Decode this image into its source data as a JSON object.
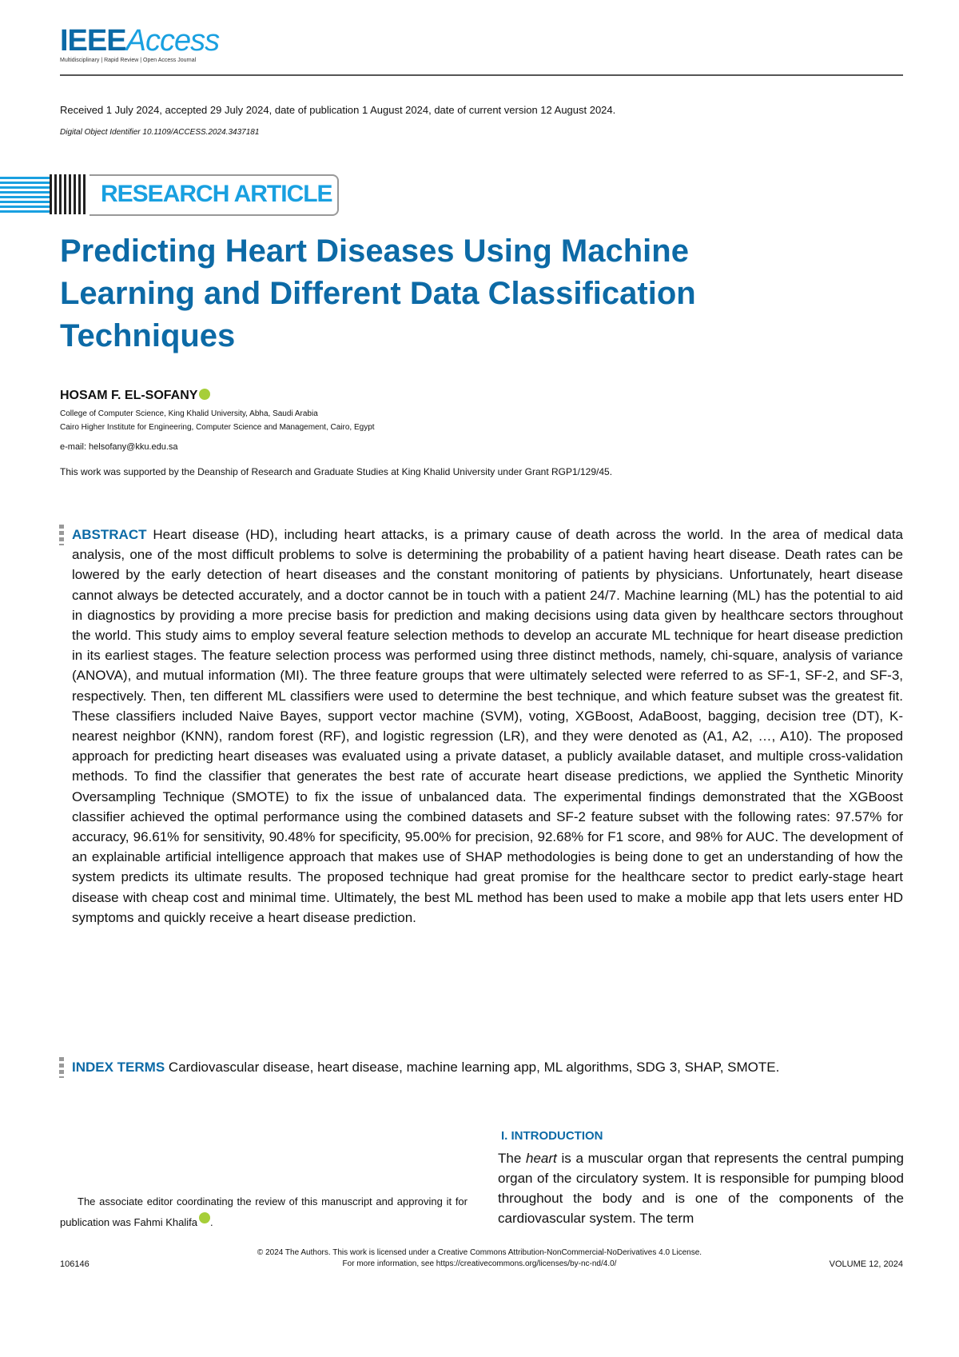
{
  "header": {
    "logo_ieee": "IEEE",
    "logo_access": "Access",
    "tagline": "Multidisciplinary | Rapid Review | Open Access Journal",
    "received": "Received 1 July 2024, accepted 29 July 2024, date of publication 1 August 2024, date of current version 12 August 2024.",
    "doi": "Digital Object Identifier 10.1109/ACCESS.2024.3437181"
  },
  "banner": "RESEARCH ARTICLE",
  "title": "Predicting Heart Diseases Using Machine Learning and Different Data Classification Techniques",
  "author": {
    "name": "HOSAM F. EL-SOFANY",
    "aff1": "College of Computer Science, King Khalid University, Abha, Saudi Arabia",
    "aff2": "Cairo Higher Institute for Engineering, Computer Science and Management, Cairo, Egypt",
    "email": "e-mail: helsofany@kku.edu.sa"
  },
  "support": "This work was supported by the Deanship of Research and Graduate Studies at King Khalid University under Grant RGP1/129/45.",
  "abstract": {
    "label": "ABSTRACT",
    "text": "Heart disease (HD), including heart attacks, is a primary cause of death across the world. In the area of medical data analysis, one of the most difficult problems to solve is determining the probability of a patient having heart disease. Death rates can be lowered by the early detection of heart diseases and the constant monitoring of patients by physicians. Unfortunately, heart disease cannot always be detected accurately, and a doctor cannot be in touch with a patient 24/7. Machine learning (ML) has the potential to aid in diagnostics by providing a more precise basis for prediction and making decisions using data given by healthcare sectors throughout the world. This study aims to employ several feature selection methods to develop an accurate ML technique for heart disease prediction in its earliest stages. The feature selection process was performed using three distinct methods, namely, chi-square, analysis of variance (ANOVA), and mutual information (MI). The three feature groups that were ultimately selected were referred to as SF-1, SF-2, and SF-3, respectively. Then, ten different ML classifiers were used to determine the best technique, and which feature subset was the greatest fit. These classifiers included Naive Bayes, support vector machine (SVM), voting, XGBoost, AdaBoost, bagging, decision tree (DT), K-nearest neighbor (KNN), random forest (RF), and logistic regression (LR), and they were denoted as (A1, A2, …, A10). The proposed approach for predicting heart diseases was evaluated using a private dataset, a publicly available dataset, and multiple cross-validation methods. To find the classifier that generates the best rate of accurate heart disease predictions, we applied the Synthetic Minority Oversampling Technique (SMOTE) to fix the issue of unbalanced data. The experimental findings demonstrated that the XGBoost classifier achieved the optimal performance using the combined datasets and SF-2 feature subset with the following rates: 97.57% for accuracy, 96.61% for sensitivity, 90.48% for specificity, 95.00% for precision, 92.68% for F1 score, and 98% for AUC. The development of an explainable artificial intelligence approach that makes use of SHAP methodologies is being done to get an understanding of how the system predicts its ultimate results. The proposed technique had great promise for the healthcare sector to predict early-stage heart disease with cheap cost and minimal time. Ultimately, the best ML method has been used to make a mobile app that lets users enter HD symptoms and quickly receive a heart disease prediction."
  },
  "index_terms": {
    "label": "INDEX TERMS",
    "text": "Cardiovascular disease, heart disease, machine learning app, ML algorithms, SDG 3, SHAP, SMOTE."
  },
  "introduction": {
    "heading": "I. INTRODUCTION",
    "pre": "The ",
    "em": "heart",
    "post": " is a muscular organ that represents the central pumping organ of the circulatory system. It is responsible for pumping blood throughout the body and is one of the components of the cardiovascular system. The term"
  },
  "footnote": "The associate editor coordinating the review of this manuscript and approving it for publication was Fahmi Khalifa",
  "footer": {
    "license": "© 2024 The Authors. This work is licensed under a Creative Commons Attribution-NonCommercial-NoDerivatives 4.0 License.",
    "more_info": "For more information, see https://creativecommons.org/licenses/by-nc-nd/4.0/",
    "page": "106146",
    "volume": "VOLUME 12, 2024"
  }
}
